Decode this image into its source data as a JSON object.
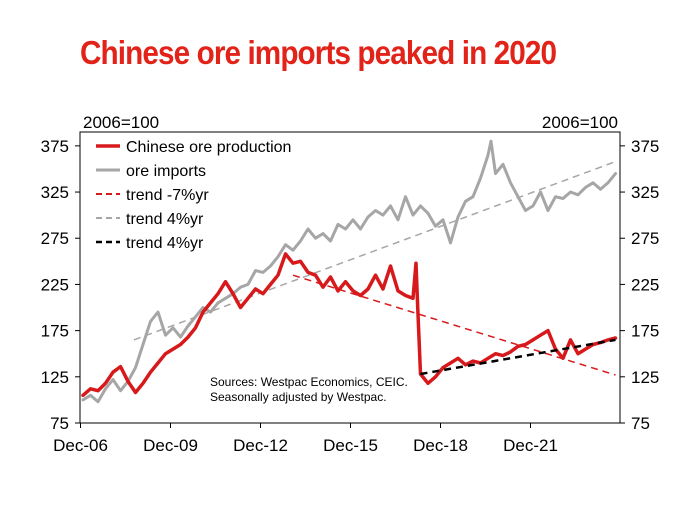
{
  "chart_data": {
    "type": "line",
    "title": "Chinese ore imports peaked in 2020",
    "left_unit": "2006=100",
    "right_unit": "2006=100",
    "ylim": [
      75,
      390
    ],
    "yticks": [
      75,
      125,
      175,
      225,
      275,
      325,
      375
    ],
    "xlim": [
      2006.9,
      2024.9
    ],
    "xticks": [
      {
        "label": "Dec-06",
        "value": 2006.917
      },
      {
        "label": "Dec-09",
        "value": 2009.917
      },
      {
        "label": "Dec-12",
        "value": 2012.917
      },
      {
        "label": "Dec-15",
        "value": 2015.917
      },
      {
        "label": "Dec-18",
        "value": 2018.917
      },
      {
        "label": "Dec-21",
        "value": 2021.917
      }
    ],
    "legend_position": "top-left",
    "note_lines": [
      "Sources: Westpac Economics, CEIC.",
      "Seasonally adjusted by Westpac."
    ],
    "series": [
      {
        "name": "Chinese ore production",
        "color": "#d7191c",
        "style": "solid",
        "width": 3.5,
        "points": [
          [
            2007.0,
            105
          ],
          [
            2007.25,
            112
          ],
          [
            2007.5,
            110
          ],
          [
            2007.75,
            118
          ],
          [
            2008.0,
            130
          ],
          [
            2008.25,
            136
          ],
          [
            2008.5,
            120
          ],
          [
            2008.75,
            108
          ],
          [
            2009.0,
            118
          ],
          [
            2009.25,
            130
          ],
          [
            2009.5,
            140
          ],
          [
            2009.75,
            150
          ],
          [
            2010.0,
            155
          ],
          [
            2010.25,
            160
          ],
          [
            2010.5,
            168
          ],
          [
            2010.75,
            178
          ],
          [
            2011.0,
            195
          ],
          [
            2011.25,
            205
          ],
          [
            2011.5,
            215
          ],
          [
            2011.75,
            228
          ],
          [
            2012.0,
            215
          ],
          [
            2012.25,
            200
          ],
          [
            2012.5,
            210
          ],
          [
            2012.75,
            220
          ],
          [
            2013.0,
            215
          ],
          [
            2013.25,
            225
          ],
          [
            2013.5,
            235
          ],
          [
            2013.75,
            258
          ],
          [
            2013.9,
            252
          ],
          [
            2014.0,
            248
          ],
          [
            2014.25,
            250
          ],
          [
            2014.5,
            238
          ],
          [
            2014.75,
            235
          ],
          [
            2015.0,
            222
          ],
          [
            2015.25,
            233
          ],
          [
            2015.5,
            218
          ],
          [
            2015.75,
            228
          ],
          [
            2016.0,
            218
          ],
          [
            2016.25,
            213
          ],
          [
            2016.5,
            220
          ],
          [
            2016.75,
            235
          ],
          [
            2017.0,
            220
          ],
          [
            2017.25,
            245
          ],
          [
            2017.5,
            218
          ],
          [
            2017.75,
            213
          ],
          [
            2018.0,
            210
          ],
          [
            2018.1,
            248
          ],
          [
            2018.16,
            198
          ],
          [
            2018.25,
            128
          ],
          [
            2018.4,
            122
          ],
          [
            2018.5,
            118
          ],
          [
            2018.75,
            125
          ],
          [
            2019.0,
            135
          ],
          [
            2019.25,
            140
          ],
          [
            2019.5,
            145
          ],
          [
            2019.75,
            138
          ],
          [
            2020.0,
            142
          ],
          [
            2020.25,
            140
          ],
          [
            2020.5,
            145
          ],
          [
            2020.75,
            150
          ],
          [
            2021.0,
            148
          ],
          [
            2021.25,
            152
          ],
          [
            2021.5,
            158
          ],
          [
            2021.75,
            160
          ],
          [
            2022.0,
            165
          ],
          [
            2022.25,
            170
          ],
          [
            2022.5,
            175
          ],
          [
            2022.75,
            155
          ],
          [
            2023.0,
            145
          ],
          [
            2023.25,
            165
          ],
          [
            2023.5,
            150
          ],
          [
            2023.75,
            155
          ],
          [
            2024.0,
            160
          ],
          [
            2024.25,
            162
          ],
          [
            2024.5,
            165
          ],
          [
            2024.75,
            167
          ]
        ]
      },
      {
        "name": "ore imports",
        "color": "#a6a6a6",
        "style": "solid",
        "width": 3,
        "points": [
          [
            2007.0,
            100
          ],
          [
            2007.25,
            105
          ],
          [
            2007.5,
            98
          ],
          [
            2007.75,
            112
          ],
          [
            2008.0,
            122
          ],
          [
            2008.25,
            110
          ],
          [
            2008.5,
            120
          ],
          [
            2008.75,
            135
          ],
          [
            2009.0,
            160
          ],
          [
            2009.25,
            185
          ],
          [
            2009.5,
            195
          ],
          [
            2009.75,
            170
          ],
          [
            2010.0,
            178
          ],
          [
            2010.25,
            168
          ],
          [
            2010.5,
            180
          ],
          [
            2010.75,
            190
          ],
          [
            2011.0,
            200
          ],
          [
            2011.25,
            195
          ],
          [
            2011.5,
            205
          ],
          [
            2011.75,
            210
          ],
          [
            2012.0,
            215
          ],
          [
            2012.25,
            222
          ],
          [
            2012.5,
            225
          ],
          [
            2012.75,
            240
          ],
          [
            2013.0,
            238
          ],
          [
            2013.25,
            245
          ],
          [
            2013.5,
            255
          ],
          [
            2013.75,
            268
          ],
          [
            2014.0,
            262
          ],
          [
            2014.25,
            272
          ],
          [
            2014.5,
            285
          ],
          [
            2014.75,
            275
          ],
          [
            2015.0,
            280
          ],
          [
            2015.25,
            272
          ],
          [
            2015.5,
            290
          ],
          [
            2015.75,
            285
          ],
          [
            2016.0,
            295
          ],
          [
            2016.25,
            285
          ],
          [
            2016.5,
            298
          ],
          [
            2016.75,
            305
          ],
          [
            2017.0,
            300
          ],
          [
            2017.25,
            310
          ],
          [
            2017.5,
            295
          ],
          [
            2017.75,
            320
          ],
          [
            2018.0,
            300
          ],
          [
            2018.25,
            310
          ],
          [
            2018.5,
            302
          ],
          [
            2018.75,
            288
          ],
          [
            2019.0,
            295
          ],
          [
            2019.25,
            270
          ],
          [
            2019.5,
            298
          ],
          [
            2019.75,
            315
          ],
          [
            2020.0,
            320
          ],
          [
            2020.25,
            340
          ],
          [
            2020.5,
            365
          ],
          [
            2020.6,
            380
          ],
          [
            2020.75,
            345
          ],
          [
            2021.0,
            355
          ],
          [
            2021.25,
            335
          ],
          [
            2021.5,
            320
          ],
          [
            2021.75,
            305
          ],
          [
            2022.0,
            310
          ],
          [
            2022.25,
            325
          ],
          [
            2022.5,
            305
          ],
          [
            2022.75,
            320
          ],
          [
            2023.0,
            318
          ],
          [
            2023.25,
            325
          ],
          [
            2023.5,
            322
          ],
          [
            2023.75,
            330
          ],
          [
            2024.0,
            335
          ],
          [
            2024.25,
            328
          ],
          [
            2024.5,
            335
          ],
          [
            2024.75,
            345
          ]
        ]
      },
      {
        "name": "trend -7%yr",
        "color": "#d7191c",
        "style": "dash",
        "width": 1.5,
        "points": [
          [
            2014.0,
            235
          ],
          [
            2024.75,
            127
          ]
        ]
      },
      {
        "name": "trend 4%yr",
        "color": "#a6a6a6",
        "style": "dash",
        "width": 1.5,
        "points": [
          [
            2008.7,
            165
          ],
          [
            2024.75,
            358
          ]
        ]
      },
      {
        "name": "trend 4%yr",
        "color": "#000000",
        "style": "dash",
        "width": 2.5,
        "points": [
          [
            2018.25,
            128
          ],
          [
            2024.75,
            165
          ]
        ]
      }
    ]
  }
}
